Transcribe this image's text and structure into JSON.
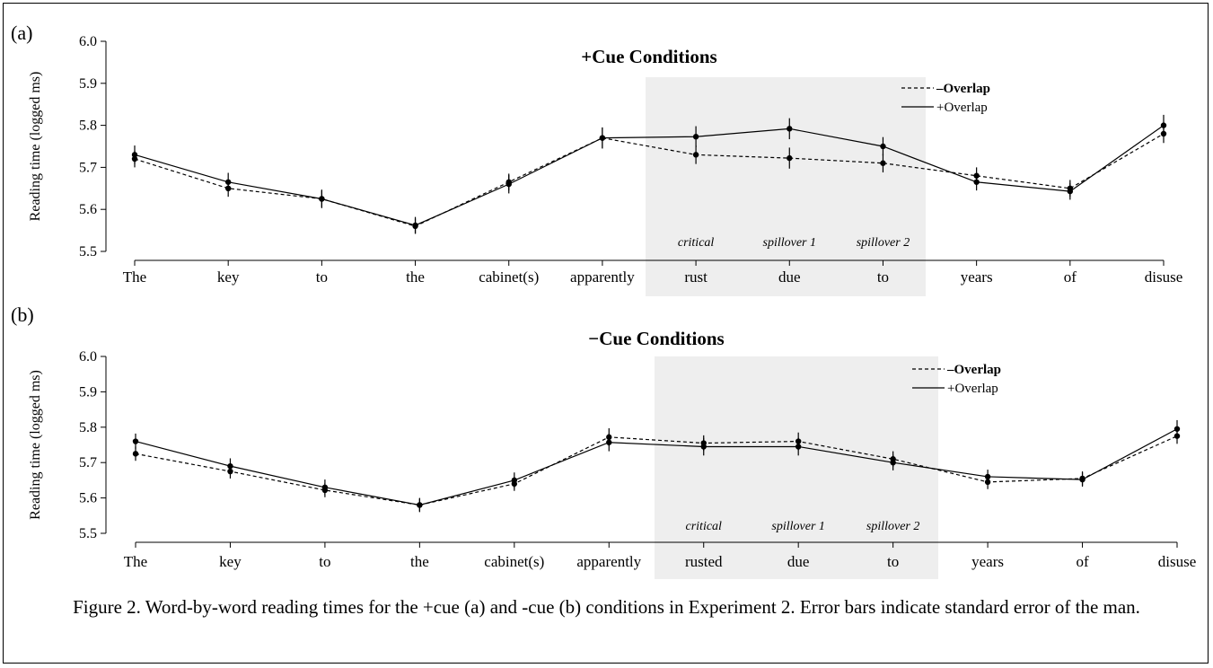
{
  "figure": {
    "caption": "Figure 2. Word-by-word reading times for the +cue (a) and -cue (b) conditions in Experiment 2. Error bars indicate standard error of the man."
  },
  "chart_data": [
    {
      "type": "line",
      "panel_label": "(a)",
      "title": "+Cue Conditions",
      "ylabel": "Reading time (logged ms)",
      "xlabel": "",
      "ylim": [
        5.5,
        6.0
      ],
      "yticks": [
        "5.5",
        "5.6",
        "5.7",
        "5.8",
        "5.9",
        "6.0"
      ],
      "categories": [
        "The",
        "key",
        "to",
        "the",
        "cabinet(s)",
        "apparently",
        "rust",
        "due",
        "to",
        "years",
        "of",
        "disuse"
      ],
      "region_labels": [
        "critical",
        "spillover 1",
        "spillover 2"
      ],
      "shaded_range": [
        6,
        8
      ],
      "legend": "top-right",
      "series": [
        {
          "name": "–Overlap",
          "style": "dashed",
          "values": [
            5.72,
            5.65,
            5.625,
            5.56,
            5.665,
            5.77,
            5.73,
            5.722,
            5.71,
            5.68,
            5.65,
            5.78
          ],
          "se": [
            0.02,
            0.02,
            0.02,
            0.018,
            0.02,
            0.025,
            0.022,
            0.025,
            0.022,
            0.02,
            0.02,
            0.022
          ]
        },
        {
          "name": "+Overlap",
          "style": "solid",
          "values": [
            5.73,
            5.665,
            5.625,
            5.562,
            5.66,
            5.77,
            5.773,
            5.792,
            5.75,
            5.665,
            5.643,
            5.8
          ],
          "se": [
            0.022,
            0.022,
            0.022,
            0.02,
            0.022,
            0.025,
            0.025,
            0.025,
            0.022,
            0.02,
            0.02,
            0.025
          ]
        }
      ]
    },
    {
      "type": "line",
      "panel_label": "(b)",
      "title": "−Cue Conditions",
      "ylabel": "Reading time (logged ms)",
      "xlabel": "",
      "ylim": [
        5.5,
        6.0
      ],
      "yticks": [
        "5.5",
        "5.6",
        "5.7",
        "5.8",
        "5.9",
        "6.0"
      ],
      "categories": [
        "The",
        "key",
        "to",
        "the",
        "cabinet(s)",
        "apparently",
        "rusted",
        "due",
        "to",
        "years",
        "of",
        "disuse"
      ],
      "region_labels": [
        "critical",
        "spillover 1",
        "spillover 2"
      ],
      "shaded_range": [
        6,
        8
      ],
      "legend": "top-right",
      "series": [
        {
          "name": "–Overlap",
          "style": "dashed",
          "values": [
            5.725,
            5.675,
            5.622,
            5.58,
            5.64,
            5.772,
            5.755,
            5.76,
            5.71,
            5.645,
            5.655,
            5.775
          ],
          "se": [
            0.02,
            0.02,
            0.02,
            0.018,
            0.02,
            0.025,
            0.022,
            0.025,
            0.022,
            0.02,
            0.02,
            0.022
          ]
        },
        {
          "name": "+Overlap",
          "style": "solid",
          "values": [
            5.76,
            5.69,
            5.63,
            5.58,
            5.65,
            5.757,
            5.745,
            5.745,
            5.7,
            5.66,
            5.652,
            5.795
          ],
          "se": [
            0.022,
            0.022,
            0.022,
            0.02,
            0.022,
            0.025,
            0.025,
            0.025,
            0.022,
            0.02,
            0.02,
            0.025
          ]
        }
      ]
    }
  ]
}
